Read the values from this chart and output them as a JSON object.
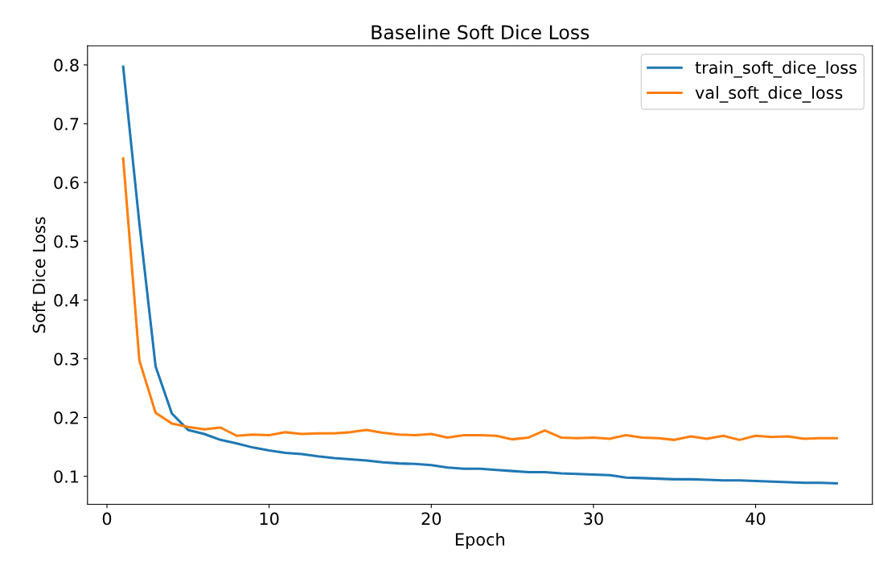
{
  "chart_data": {
    "type": "line",
    "title": "Baseline Soft Dice Loss",
    "xlabel": "Epoch",
    "ylabel": "Soft Dice Loss",
    "x": [
      1,
      2,
      3,
      4,
      5,
      6,
      7,
      8,
      9,
      10,
      11,
      12,
      13,
      14,
      15,
      16,
      17,
      18,
      19,
      20,
      21,
      22,
      23,
      24,
      25,
      26,
      27,
      28,
      29,
      30,
      31,
      32,
      33,
      34,
      35,
      36,
      37,
      38,
      39,
      40,
      41,
      42,
      43,
      44,
      45
    ],
    "series": [
      {
        "name": "train_soft_dice_loss",
        "color": "#1f77b4",
        "values": [
          0.797,
          0.53,
          0.287,
          0.207,
          0.179,
          0.172,
          0.162,
          0.156,
          0.149,
          0.144,
          0.14,
          0.138,
          0.134,
          0.131,
          0.129,
          0.127,
          0.124,
          0.122,
          0.121,
          0.119,
          0.115,
          0.113,
          0.113,
          0.111,
          0.109,
          0.107,
          0.107,
          0.105,
          0.104,
          0.103,
          0.102,
          0.098,
          0.097,
          0.096,
          0.095,
          0.095,
          0.094,
          0.093,
          0.093,
          0.092,
          0.091,
          0.09,
          0.089,
          0.089,
          0.088
        ]
      },
      {
        "name": "val_soft_dice_loss",
        "color": "#ff7f0e",
        "values": [
          0.641,
          0.297,
          0.208,
          0.19,
          0.184,
          0.18,
          0.183,
          0.169,
          0.171,
          0.17,
          0.175,
          0.172,
          0.173,
          0.173,
          0.175,
          0.179,
          0.174,
          0.171,
          0.17,
          0.172,
          0.166,
          0.17,
          0.17,
          0.169,
          0.163,
          0.166,
          0.178,
          0.166,
          0.165,
          0.166,
          0.164,
          0.17,
          0.166,
          0.165,
          0.162,
          0.168,
          0.164,
          0.169,
          0.162,
          0.169,
          0.167,
          0.168,
          0.164,
          0.165,
          0.165
        ]
      }
    ],
    "xlim": [
      -1.2,
      47.2
    ],
    "xticks": [
      0,
      10,
      20,
      30,
      40
    ],
    "ylim": [
      0.0525,
      0.8325
    ],
    "yticks": [
      0.1,
      0.2,
      0.3,
      0.4,
      0.5,
      0.6,
      0.7,
      0.8
    ],
    "grid": false,
    "legend": "top right"
  }
}
